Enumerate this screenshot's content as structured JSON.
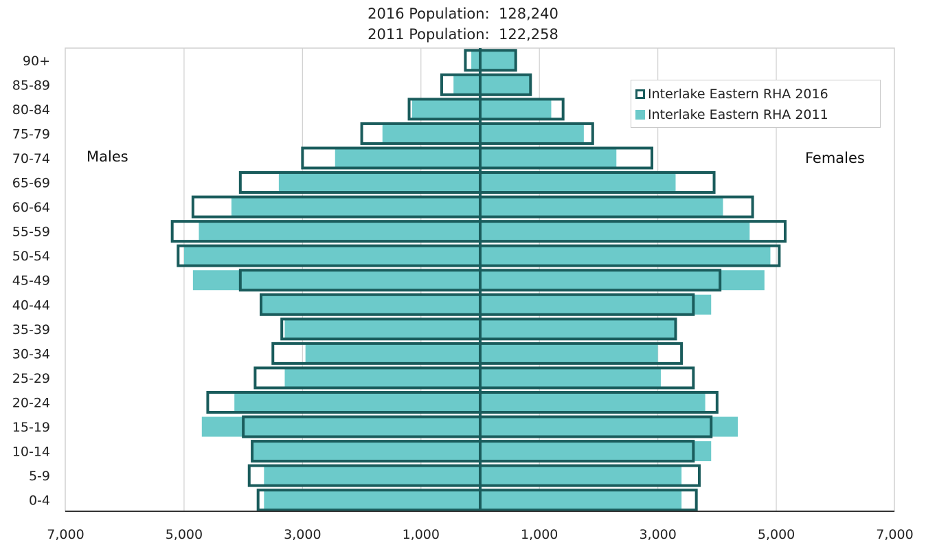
{
  "header": {
    "line1": "2016 Population:  128,240",
    "line2": "2011 Population:  122,258"
  },
  "labels": {
    "males": "Males",
    "females": "Females"
  },
  "legend": {
    "items": [
      {
        "label": "Interlake Eastern RHA 2016",
        "style": "outline",
        "color": "#1a5c5c"
      },
      {
        "label": "Interlake Eastern RHA 2011",
        "style": "fill",
        "color": "#6ccaca"
      }
    ]
  },
  "colors": {
    "outline_2016": "#1a5c5c",
    "fill_2011": "#6ccaca",
    "grid": "#d0d0d0",
    "axis": "#333333"
  },
  "chart_data": {
    "type": "bar",
    "orientation": "horizontal-pyramid",
    "categories": [
      "90+",
      "85-89",
      "80-84",
      "75-79",
      "70-74",
      "65-69",
      "60-64",
      "55-59",
      "50-54",
      "45-49",
      "40-44",
      "35-39",
      "30-34",
      "25-29",
      "20-24",
      "15-19",
      "10-14",
      "5-9",
      "0-4"
    ],
    "series": [
      {
        "name": "Interlake Eastern RHA 2016",
        "side": "Males",
        "values": [
          250,
          650,
          1200,
          2000,
          3000,
          4050,
          4850,
          5200,
          5100,
          4050,
          3700,
          3350,
          3500,
          3800,
          4600,
          4000,
          3850,
          3900,
          3750
        ]
      },
      {
        "name": "Interlake Eastern RHA 2016",
        "side": "Females",
        "values": [
          600,
          850,
          1400,
          1900,
          2900,
          3950,
          4600,
          5150,
          5050,
          4050,
          3600,
          3300,
          3400,
          3600,
          4000,
          3900,
          3600,
          3700,
          3650
        ]
      },
      {
        "name": "Interlake Eastern RHA 2011",
        "side": "Males",
        "values": [
          150,
          450,
          1150,
          1650,
          2450,
          3400,
          4200,
          4750,
          5000,
          4850,
          3700,
          3300,
          2950,
          3300,
          4150,
          4700,
          3850,
          3650,
          3650
        ]
      },
      {
        "name": "Interlake Eastern RHA 2011",
        "side": "Females",
        "values": [
          600,
          850,
          1200,
          1750,
          2300,
          3300,
          4100,
          4550,
          4900,
          4800,
          3900,
          3300,
          3000,
          3050,
          3800,
          4350,
          3900,
          3400,
          3400
        ]
      }
    ],
    "x_ticks": [
      "7,000",
      "5,000",
      "3,000",
      "1,000",
      "1,000",
      "3,000",
      "5,000",
      "7,000"
    ],
    "xlim": [
      -7000,
      7000
    ],
    "grid": true,
    "legend_position": "top-right"
  }
}
